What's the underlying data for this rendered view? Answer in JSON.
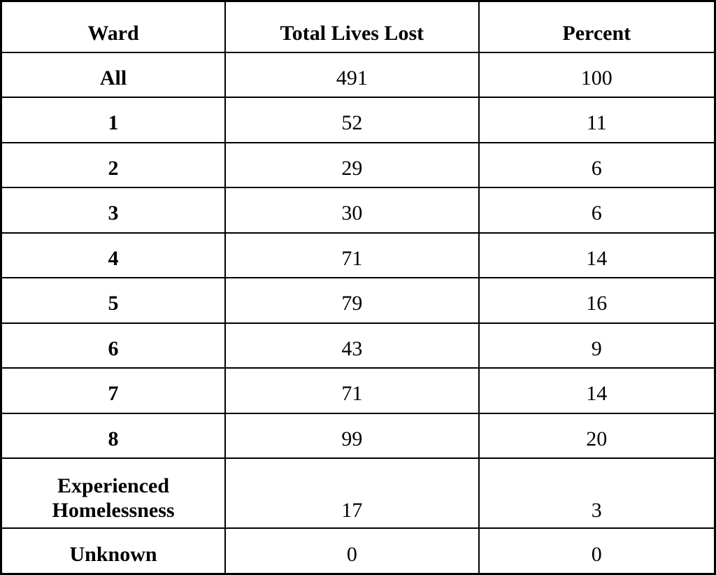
{
  "table": {
    "columns": [
      {
        "label": "Ward"
      },
      {
        "label": "Total Lives Lost"
      },
      {
        "label": "Percent"
      }
    ],
    "rows": [
      {
        "ward": "All",
        "total_lives_lost": "491",
        "percent": "100"
      },
      {
        "ward": "1",
        "total_lives_lost": "52",
        "percent": "11"
      },
      {
        "ward": "2",
        "total_lives_lost": "29",
        "percent": "6"
      },
      {
        "ward": "3",
        "total_lives_lost": "30",
        "percent": "6"
      },
      {
        "ward": "4",
        "total_lives_lost": "71",
        "percent": "14"
      },
      {
        "ward": "5",
        "total_lives_lost": "79",
        "percent": "16"
      },
      {
        "ward": "6",
        "total_lives_lost": "43",
        "percent": "9"
      },
      {
        "ward": "7",
        "total_lives_lost": "71",
        "percent": "14"
      },
      {
        "ward": "8",
        "total_lives_lost": "99",
        "percent": "20"
      },
      {
        "ward": "Experienced Homelessness",
        "total_lives_lost": "17",
        "percent": "3"
      },
      {
        "ward": "Unknown",
        "total_lives_lost": "0",
        "percent": "0"
      }
    ],
    "colors": {
      "text": "#000000",
      "border": "#000000",
      "background": "#ffffff"
    }
  }
}
